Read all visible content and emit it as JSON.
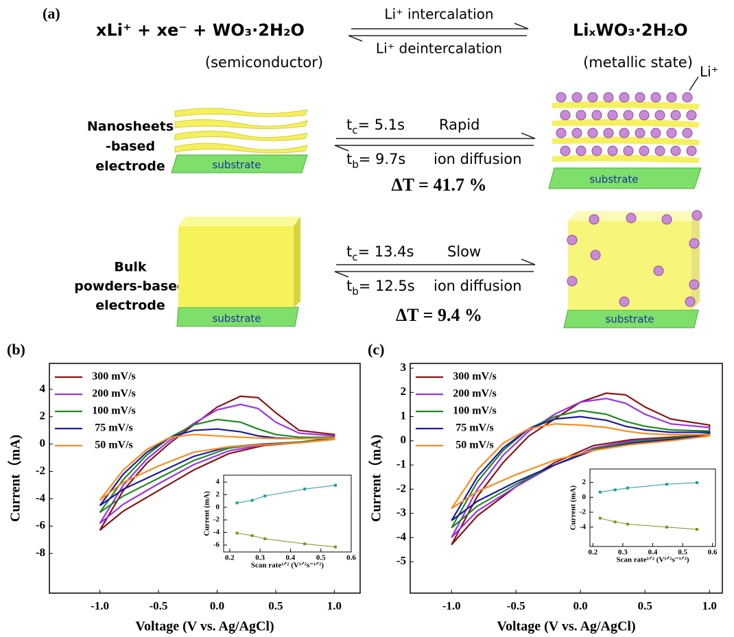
{
  "diagram": {
    "label": "(a)",
    "reactant": "xLi⁺ + xe⁻ + WO₃·2H₂O",
    "reactant_state": "(semiconductor)",
    "forward": "Li⁺ intercalation",
    "backward": "Li⁺ deintercalation",
    "product": "LiₓWO₃·2H₂O",
    "product_state": "(metallic state)",
    "ion": "Li⁺",
    "rows": [
      {
        "label": [
          "Nanosheets",
          "-based",
          "electrode"
        ],
        "substrate": "substrate",
        "product_substrate": "substrate",
        "tc": {
          "symbol": "t",
          "sub": "c",
          "text": "= 5.1s"
        },
        "tb": {
          "symbol": "t",
          "sub": "b",
          "text": "= 9.7s"
        },
        "speed": "Rapid",
        "diffusion": "ion diffusion",
        "delta": "ΔT = 41.7 %"
      },
      {
        "label": [
          "Bulk",
          "powders-based",
          "electrode"
        ],
        "substrate": "substrate",
        "product_substrate": "substrate",
        "tc": {
          "symbol": "t",
          "sub": "c",
          "text": "= 13.4s"
        },
        "tb": {
          "symbol": "t",
          "sub": "b",
          "text": "= 12.5s"
        },
        "speed": "Slow",
        "diffusion": "ion diffusion",
        "delta": "ΔT = 9.4 %"
      }
    ]
  },
  "chart_data": [
    {
      "type": "line",
      "label": "(b)",
      "xlabel": "Voltage (V vs. Ag/AgCl)",
      "ylabel": "Current（mA)",
      "legend": "upper left",
      "x": [
        -1,
        -0.8,
        -0.6,
        -0.4,
        -0.2,
        0,
        0.2,
        0.35,
        0.5,
        0.7,
        1,
        1,
        0.7,
        0.4,
        0.1,
        -0.2,
        -0.5,
        -0.8,
        -1
      ],
      "xlim": [
        -1.43,
        1.22
      ],
      "xticks": [
        {
          "value": -1,
          "label": "-1.0"
        },
        -0.5,
        {
          "value": 0,
          "label": "0.0"
        },
        0.5,
        {
          "value": 1,
          "label": "1.0"
        }
      ],
      "ylim": [
        -10.9,
        5.9
      ],
      "yticks": [
        -8,
        -6,
        -4,
        -2,
        0,
        2,
        4
      ],
      "series": [
        {
          "name": "300 mV/s",
          "color": "#8b1010",
          "values": [
            -6.3,
            -3.4,
            -1.4,
            0.1,
            1.4,
            2.7,
            3.5,
            3.4,
            2.3,
            1.0,
            0.7,
            0.4,
            0.1,
            -0.1,
            -0.7,
            -1.9,
            -3.4,
            -4.9,
            -6.3
          ]
        },
        {
          "name": "200 mV/s",
          "color": "#9b30ef",
          "values": [
            -5.8,
            -3.0,
            -1.1,
            0.3,
            1.5,
            2.5,
            2.9,
            2.6,
            1.6,
            0.8,
            0.6,
            0.45,
            0.15,
            -0.05,
            -0.5,
            -1.5,
            -2.9,
            -4.4,
            -5.8
          ]
        },
        {
          "name": "100 mV/s",
          "color": "#1e8a1e",
          "values": [
            -5.0,
            -2.6,
            -0.8,
            0.5,
            1.4,
            1.8,
            1.6,
            1.1,
            0.7,
            0.5,
            0.5,
            0.4,
            0.15,
            0,
            -0.3,
            -1.2,
            -2.5,
            -3.8,
            -5.0
          ]
        },
        {
          "name": "75 mV/s",
          "color": "#1a1aa0",
          "values": [
            -4.5,
            -2.2,
            -0.6,
            0.5,
            1.0,
            1.1,
            0.9,
            0.6,
            0.45,
            0.4,
            0.45,
            0.35,
            0.1,
            0,
            -0.2,
            -0.9,
            -2.1,
            -3.3,
            -4.5
          ]
        },
        {
          "name": "50 mV/s",
          "color": "#ff8a1a",
          "values": [
            -4.1,
            -1.9,
            -0.4,
            0.5,
            0.7,
            0.6,
            0.5,
            0.45,
            0.4,
            0.4,
            0.45,
            0.35,
            0.1,
            -0.05,
            -0.2,
            -0.6,
            -1.6,
            -2.8,
            -4.1
          ]
        }
      ]
    },
    {
      "type": "line",
      "label": "(c)",
      "xlabel": "Voltage (V vs. Ag/AgCl)",
      "ylabel": "Current（mA)",
      "legend": "upper left",
      "x": [
        -1,
        -0.8,
        -0.6,
        -0.4,
        -0.2,
        0,
        0.2,
        0.35,
        0.5,
        0.7,
        1,
        1,
        0.7,
        0.4,
        0.1,
        -0.2,
        -0.5,
        -0.8,
        -1
      ],
      "xlim": [
        -1.32,
        1.1
      ],
      "xticks": [
        {
          "value": -1,
          "label": "-1.0"
        },
        -0.5,
        {
          "value": 0,
          "label": "0.0"
        },
        0.5,
        {
          "value": 1,
          "label": "1.0"
        }
      ],
      "ylim": [
        -6.3,
        3.2
      ],
      "yticks": [
        -5,
        -4,
        -3,
        -2,
        -1,
        0,
        1,
        2,
        3
      ],
      "series": [
        {
          "name": "300 mV/s",
          "color": "#8b1010",
          "values": [
            -4.3,
            -2.3,
            -0.9,
            0.2,
            0.9,
            1.6,
            1.97,
            1.9,
            1.4,
            0.9,
            0.65,
            0.25,
            0.15,
            0.05,
            -0.2,
            -0.9,
            -1.9,
            -3.1,
            -4.3
          ]
        },
        {
          "name": "200 mV/s",
          "color": "#9b30ef",
          "values": [
            -4.0,
            -2.0,
            -0.6,
            0.4,
            1.1,
            1.6,
            1.75,
            1.55,
            1.1,
            0.7,
            0.55,
            0.3,
            0.1,
            0,
            -0.3,
            -1.0,
            -1.9,
            -2.9,
            -4.0
          ]
        },
        {
          "name": "100 mV/s",
          "color": "#1e8a1e",
          "values": [
            -3.6,
            -1.7,
            -0.4,
            0.5,
            1.0,
            1.25,
            1.1,
            0.8,
            0.6,
            0.45,
            0.4,
            0.3,
            0.1,
            -0.05,
            -0.35,
            -1.0,
            -1.8,
            -2.7,
            -3.6
          ]
        },
        {
          "name": "75 mV/s",
          "color": "#1a1aa0",
          "values": [
            -3.3,
            -1.5,
            -0.3,
            0.5,
            0.9,
            1.0,
            0.85,
            0.6,
            0.45,
            0.35,
            0.35,
            0.25,
            0.05,
            -0.1,
            -0.4,
            -1.0,
            -1.7,
            -2.5,
            -3.3
          ]
        },
        {
          "name": "50 mV/s",
          "color": "#ff8a1a",
          "values": [
            -2.8,
            -1.2,
            -0.1,
            0.5,
            0.7,
            0.65,
            0.55,
            0.4,
            0.3,
            0.25,
            0.25,
            0.2,
            0,
            -0.15,
            -0.4,
            -0.8,
            -1.4,
            -2.1,
            -2.8
          ]
        }
      ]
    },
    {
      "type": "line",
      "xlabel": "Scan rate¹ᐟ² (V¹ᐟ²s⁻¹ᐟ²)",
      "ylabel": "Current (mA)",
      "x": [
        0.224,
        0.274,
        0.316,
        0.447,
        0.548
      ],
      "xlim": [
        0.18,
        0.6
      ],
      "xticks": [
        0.2,
        0.3,
        0.4,
        0.5,
        0.6
      ],
      "ylim": [
        -7.1,
        5.1
      ],
      "yticks": [
        -6,
        -4,
        -2,
        0,
        2,
        4
      ],
      "series": [
        {
          "color": "#1a9a9a",
          "values": [
            0.7,
            1.1,
            1.8,
            2.9,
            3.5
          ]
        },
        {
          "color": "#8b8b1a",
          "values": [
            -4.1,
            -4.5,
            -5.0,
            -5.8,
            -6.3
          ]
        }
      ]
    },
    {
      "type": "line",
      "xlabel": "Scan rate¹ᐟ² (V¹ᐟ²s⁻¹ᐟ²)",
      "ylabel": "Current (mA)",
      "x": [
        0.224,
        0.274,
        0.316,
        0.447,
        0.548
      ],
      "xlim": [
        0.19,
        0.61
      ],
      "xticks": [
        0.2,
        0.3,
        0.4,
        0.5,
        0.6
      ],
      "ylim": [
        -6.6,
        3.8
      ],
      "yticks": [
        -4,
        -2,
        0,
        2
      ],
      "series": [
        {
          "color": "#1a9a9a",
          "values": [
            0.7,
            1.0,
            1.25,
            1.75,
            1.97
          ]
        },
        {
          "color": "#8b8b1a",
          "values": [
            -2.8,
            -3.3,
            -3.6,
            -4.0,
            -4.3
          ]
        }
      ]
    }
  ]
}
